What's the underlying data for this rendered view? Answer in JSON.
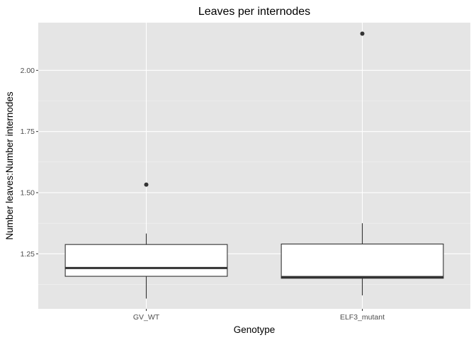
{
  "chart_data": {
    "type": "boxplot",
    "title": "Leaves per internodes",
    "xlabel": "Genotype",
    "ylabel": "Number leaves:Number internodes",
    "categories": [
      "GV_WT",
      "ELF3_mutant"
    ],
    "yticks": [
      1.25,
      1.5,
      1.75,
      2.0
    ],
    "ytick_labels": [
      "1.25",
      "1.50",
      "1.75",
      "2.00"
    ],
    "ylim": [
      1.025,
      2.195
    ],
    "boxes": [
      {
        "category": "GV_WT",
        "whisker_low": 1.067,
        "q1": 1.158,
        "median": 1.192,
        "q3": 1.288,
        "whisker_high": 1.333,
        "outliers": [
          1.533
        ]
      },
      {
        "category": "ELF3_mutant",
        "whisker_low": 1.08,
        "q1": 1.15,
        "median": 1.155,
        "q3": 1.29,
        "whisker_high": 1.375,
        "outliers": [
          2.15
        ]
      }
    ],
    "grid": true,
    "panel_background": "#e5e5e5",
    "grid_major_color": "#ffffff",
    "grid_minor_color": "#f2f2f2",
    "box_fill": "#ffffff",
    "box_stroke": "#333333"
  }
}
